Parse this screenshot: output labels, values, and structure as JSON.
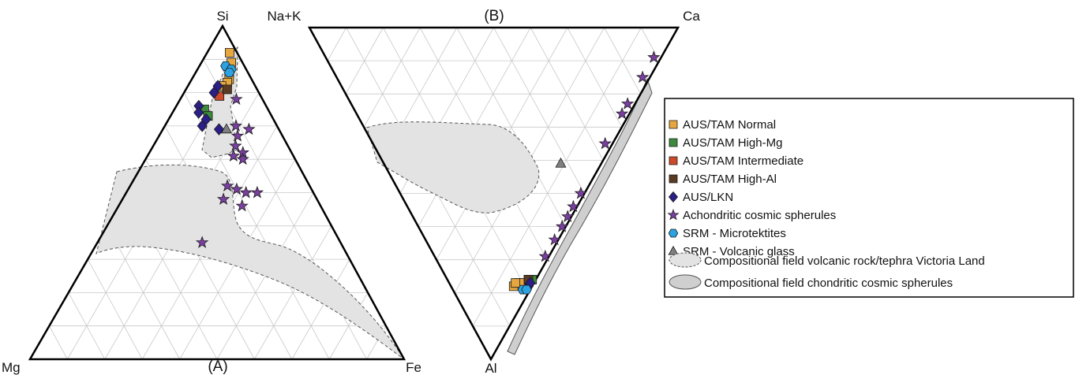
{
  "chart_data": [
    {
      "type": "scatter",
      "title": "(A)",
      "ternary": true,
      "vertices": [
        "Si",
        "Mg",
        "Fe"
      ],
      "grid": true,
      "series": [
        {
          "name": "AUS/TAM Normal",
          "points": [
            {
              "Si": 0.92,
              "Mg": 0.02,
              "Fe": 0.06
            },
            {
              "Si": 0.89,
              "Mg": 0.03,
              "Fe": 0.08
            },
            {
              "Si": 0.86,
              "Mg": 0.05,
              "Fe": 0.09
            },
            {
              "Si": 0.84,
              "Mg": 0.06,
              "Fe": 0.1
            },
            {
              "Si": 0.83,
              "Mg": 0.07,
              "Fe": 0.1
            },
            {
              "Si": 0.82,
              "Mg": 0.09,
              "Fe": 0.09
            },
            {
              "Si": 0.81,
              "Mg": 0.08,
              "Fe": 0.11
            }
          ]
        },
        {
          "name": "AUS/TAM High-Mg",
          "points": [
            {
              "Si": 0.75,
              "Mg": 0.17,
              "Fe": 0.08
            },
            {
              "Si": 0.73,
              "Mg": 0.17,
              "Fe": 0.1
            }
          ]
        },
        {
          "name": "AUS/TAM Intermediate",
          "points": [
            {
              "Si": 0.79,
              "Mg": 0.11,
              "Fe": 0.1
            }
          ]
        },
        {
          "name": "AUS/TAM High-Al",
          "points": [
            {
              "Si": 0.81,
              "Mg": 0.08,
              "Fe": 0.11
            }
          ]
        },
        {
          "name": "AUS/LKN",
          "points": [
            {
              "Si": 0.82,
              "Mg": 0.1,
              "Fe": 0.08
            },
            {
              "Si": 0.8,
              "Mg": 0.12,
              "Fe": 0.08
            },
            {
              "Si": 0.76,
              "Mg": 0.18,
              "Fe": 0.06
            },
            {
              "Si": 0.74,
              "Mg": 0.19,
              "Fe": 0.07
            },
            {
              "Si": 0.72,
              "Mg": 0.18,
              "Fe": 0.1
            },
            {
              "Si": 0.7,
              "Mg": 0.2,
              "Fe": 0.1
            },
            {
              "Si": 0.69,
              "Mg": 0.16,
              "Fe": 0.15
            }
          ]
        },
        {
          "name": "Achondritic cosmic spherules",
          "points": [
            {
              "Si": 0.78,
              "Mg": 0.07,
              "Fe": 0.15
            },
            {
              "Si": 0.7,
              "Mg": 0.11,
              "Fe": 0.19
            },
            {
              "Si": 0.69,
              "Mg": 0.08,
              "Fe": 0.23
            },
            {
              "Si": 0.67,
              "Mg": 0.12,
              "Fe": 0.21
            },
            {
              "Si": 0.64,
              "Mg": 0.14,
              "Fe": 0.22
            },
            {
              "Si": 0.62,
              "Mg": 0.13,
              "Fe": 0.25
            },
            {
              "Si": 0.61,
              "Mg": 0.16,
              "Fe": 0.23
            },
            {
              "Si": 0.6,
              "Mg": 0.14,
              "Fe": 0.26
            },
            {
              "Si": 0.52,
              "Mg": 0.22,
              "Fe": 0.26
            },
            {
              "Si": 0.51,
              "Mg": 0.2,
              "Fe": 0.29
            },
            {
              "Si": 0.5,
              "Mg": 0.18,
              "Fe": 0.32
            },
            {
              "Si": 0.5,
              "Mg": 0.15,
              "Fe": 0.35
            },
            {
              "Si": 0.48,
              "Mg": 0.25,
              "Fe": 0.27
            },
            {
              "Si": 0.46,
              "Mg": 0.21,
              "Fe": 0.33
            },
            {
              "Si": 0.35,
              "Mg": 0.37,
              "Fe": 0.28
            }
          ]
        },
        {
          "name": "SRM - Microtektites",
          "points": [
            {
              "Si": 0.88,
              "Mg": 0.05,
              "Fe": 0.07
            },
            {
              "Si": 0.87,
              "Mg": 0.04,
              "Fe": 0.09
            },
            {
              "Si": 0.86,
              "Mg": 0.05,
              "Fe": 0.09
            }
          ]
        },
        {
          "name": "SRM - Volcanic glass",
          "points": [
            {
              "Si": 0.69,
              "Mg": 0.14,
              "Fe": 0.17
            }
          ]
        }
      ]
    },
    {
      "type": "scatter",
      "title": "(B)",
      "ternary": true,
      "vertices": [
        "Na+K",
        "Ca",
        "Al"
      ],
      "grid": true,
      "series": [
        {
          "name": "AUS/TAM Normal",
          "points": [
            {
              "Na+K": 0.05,
              "Ca": 0.17,
              "Al": 0.78
            },
            {
              "Na+K": 0.04,
              "Ca": 0.19,
              "Al": 0.77
            },
            {
              "Na+K": 0.03,
              "Ca": 0.2,
              "Al": 0.77
            },
            {
              "Na+K": 0.05,
              "Ca": 0.18,
              "Al": 0.77
            }
          ]
        },
        {
          "name": "AUS/TAM High-Mg",
          "points": [
            {
              "Na+K": 0.01,
              "Ca": 0.23,
              "Al": 0.76
            }
          ]
        },
        {
          "name": "AUS/TAM Intermediate",
          "points": [
            {
              "Na+K": 0.02,
              "Ca": 0.22,
              "Al": 0.76
            }
          ]
        },
        {
          "name": "AUS/TAM High-Al",
          "points": [
            {
              "Na+K": 0.02,
              "Ca": 0.22,
              "Al": 0.76
            }
          ]
        },
        {
          "name": "AUS/LKN",
          "points": [
            {
              "Na+K": 0.01,
              "Ca": 0.21,
              "Al": 0.78
            },
            {
              "Na+K": 0.01,
              "Ca": 0.22,
              "Al": 0.77
            }
          ]
        },
        {
          "name": "Achondritic cosmic spherules",
          "points": [
            {
              "Na+K": 0.02,
              "Ca": 0.89,
              "Al": 0.09
            },
            {
              "Na+K": 0.02,
              "Ca": 0.83,
              "Al": 0.15
            },
            {
              "Na+K": 0.02,
              "Ca": 0.75,
              "Al": 0.23
            },
            {
              "Na+K": 0.02,
              "Ca": 0.72,
              "Al": 0.26
            },
            {
              "Na+K": 0.02,
              "Ca": 0.63,
              "Al": 0.35
            },
            {
              "Na+K": 0.01,
              "Ca": 0.49,
              "Al": 0.5
            },
            {
              "Na+K": 0.01,
              "Ca": 0.45,
              "Al": 0.54
            },
            {
              "Na+K": 0.01,
              "Ca": 0.42,
              "Al": 0.57
            },
            {
              "Na+K": 0.01,
              "Ca": 0.39,
              "Al": 0.6
            },
            {
              "Na+K": 0.01,
              "Ca": 0.35,
              "Al": 0.64
            },
            {
              "Na+K": 0.01,
              "Ca": 0.3,
              "Al": 0.69
            }
          ]
        },
        {
          "name": "SRM - Microtektites",
          "points": [
            {
              "Na+K": 0.02,
              "Ca": 0.19,
              "Al": 0.79
            },
            {
              "Na+K": 0.01,
              "Ca": 0.2,
              "Al": 0.79
            }
          ]
        },
        {
          "name": "SRM - Volcanic glass",
          "points": [
            {
              "Na+K": 0.11,
              "Ca": 0.48,
              "Al": 0.41
            }
          ]
        }
      ]
    }
  ],
  "legend": {
    "items": [
      {
        "label": "AUS/TAM Normal",
        "marker": "square",
        "color": "#e6a740"
      },
      {
        "label": "AUS/TAM High-Mg",
        "marker": "square",
        "color": "#3d8a3d"
      },
      {
        "label": "AUS/TAM Intermediate",
        "marker": "square",
        "color": "#cc4a2a"
      },
      {
        "label": "AUS/TAM High-Al",
        "marker": "square",
        "color": "#5a3a22"
      },
      {
        "label": "AUS/LKN",
        "marker": "diamond",
        "color": "#2a1f86"
      },
      {
        "label": "Achondritic cosmic spherules",
        "marker": "star",
        "color": "#7a3fa0"
      },
      {
        "label": "SRM - Microtektites",
        "marker": "hexagon",
        "color": "#2ba3e3"
      },
      {
        "label": "SRM - Volcanic glass",
        "marker": "triangle",
        "color": "#808080"
      },
      {
        "label": "Compositional field volcanic rock/tephra Victoria Land",
        "marker": "field-dashed",
        "color": "#e3e3e3"
      },
      {
        "label": "Compositional field chondritic cosmic spherules",
        "marker": "field-solid",
        "color": "#cfcfcf"
      }
    ]
  }
}
